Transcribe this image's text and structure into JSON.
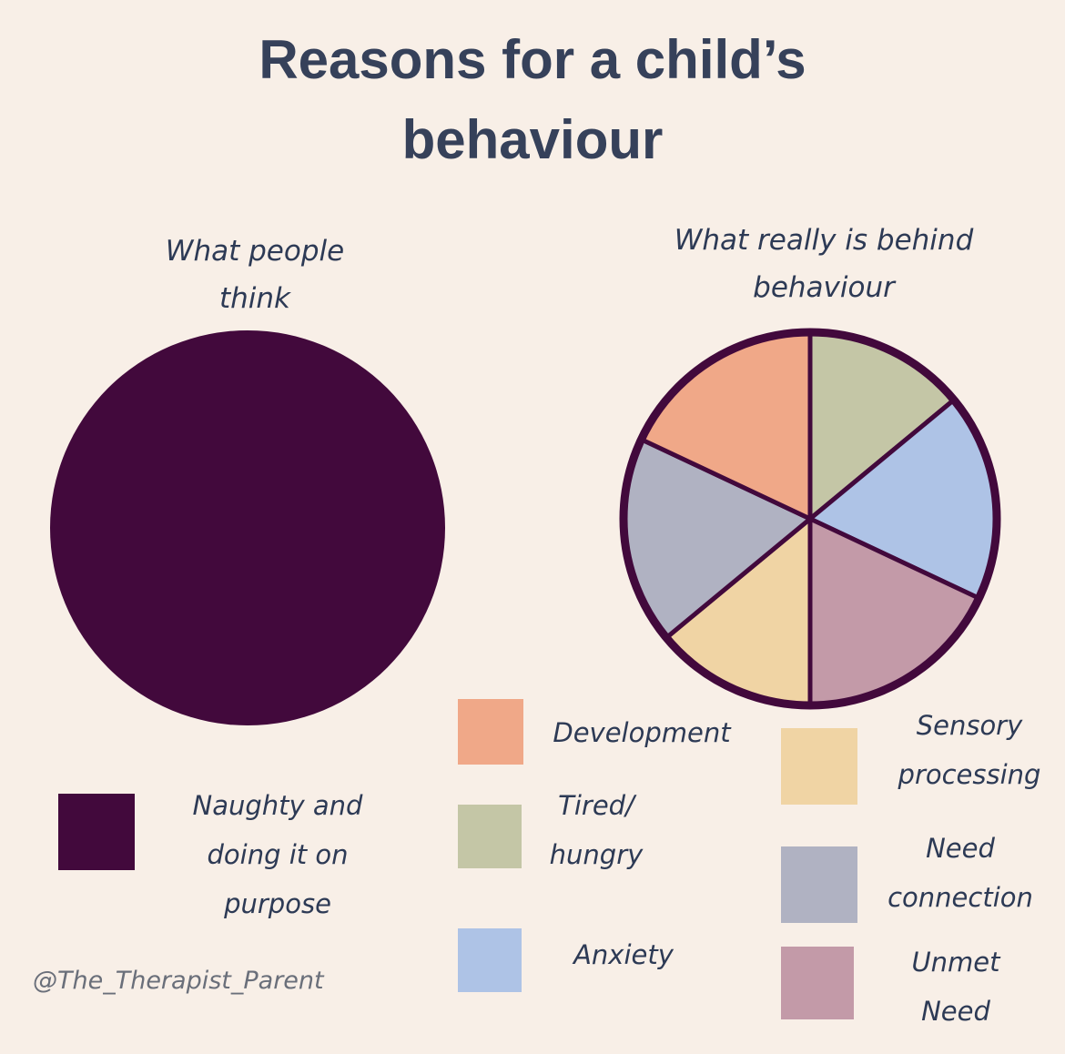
{
  "title": "Reasons for a child’s behaviour",
  "credit": "@The_Therapist_Parent",
  "chart_data": [
    {
      "type": "pie",
      "subtitle": "What people think",
      "categories": [
        "Naughty and doing it on purpose"
      ],
      "values": [
        100
      ],
      "colors": [
        "#42093c"
      ]
    },
    {
      "type": "pie",
      "subtitle": "What really is behind behaviour",
      "categories": [
        "Tired/ hungry",
        "Anxiety",
        "Unmet Need",
        "Sensory processing",
        "Need connection",
        "Development"
      ],
      "values": [
        14,
        18,
        18,
        14,
        18,
        18
      ],
      "colors": [
        "#c4c6a6",
        "#aec3e6",
        "#c39aa8",
        "#f0d4a4",
        "#b0b2c2",
        "#f0a888"
      ]
    }
  ]
}
